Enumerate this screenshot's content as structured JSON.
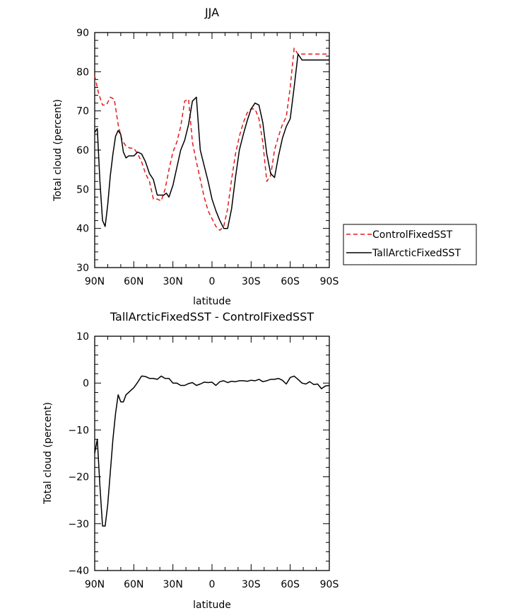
{
  "chart_data": [
    {
      "type": "line",
      "title": "JJA",
      "xlabel": "latitude",
      "ylabel": "Total cloud (percent)",
      "xlim": [
        90,
        -90
      ],
      "ylim": [
        30,
        90
      ],
      "x_tick_values": [
        90,
        60,
        30,
        0,
        -30,
        -60,
        -90
      ],
      "x_tick_labels": [
        "90N",
        "60N",
        "30N",
        "0",
        "30S",
        "60S",
        "90S"
      ],
      "y_tick_values": [
        30,
        40,
        50,
        60,
        70,
        80,
        90
      ],
      "y_tick_labels": [
        "30",
        "40",
        "50",
        "60",
        "70",
        "80",
        "90"
      ],
      "legend_position": "right",
      "series": [
        {
          "name": "ControlFixedSST",
          "color": "#e31a1c",
          "dash": "dashed",
          "x": [
            90,
            87,
            84,
            81,
            78,
            75,
            72,
            69,
            66,
            63,
            60,
            57,
            54,
            51,
            48,
            45,
            42,
            39,
            36,
            33,
            30,
            27,
            24,
            21,
            18,
            15,
            12,
            9,
            6,
            3,
            0,
            -3,
            -6,
            -9,
            -12,
            -15,
            -18,
            -21,
            -24,
            -27,
            -30,
            -33,
            -36,
            -39,
            -42,
            -45,
            -48,
            -51,
            -54,
            -57,
            -60,
            -63,
            -66,
            -69,
            -72,
            -75,
            -78,
            -81,
            -84,
            -87,
            -90
          ],
          "y": [
            79,
            74.5,
            71.5,
            71.5,
            73.5,
            73,
            66.5,
            62.5,
            61,
            60.5,
            60.5,
            59,
            57,
            54,
            52,
            47.5,
            47.5,
            47,
            50,
            55,
            59.5,
            62,
            66,
            72.5,
            73,
            62,
            57,
            52.5,
            48,
            44.5,
            42.5,
            40.5,
            39.5,
            40.5,
            45,
            52.5,
            59,
            63.5,
            67,
            69.5,
            70.5,
            70.5,
            68,
            62,
            52,
            53.5,
            60,
            63.5,
            66.5,
            68.5,
            76,
            86,
            84.5,
            84.5,
            84.5,
            84.5,
            84.5,
            84.5,
            84.5,
            84.5,
            84.5
          ]
        },
        {
          "name": "TallArcticFixedSST",
          "color": "#000000",
          "dash": "solid",
          "x": [
            90,
            88,
            86,
            84,
            82,
            80,
            78,
            76,
            74,
            72,
            70,
            68,
            66,
            64,
            62,
            60,
            57,
            54,
            51,
            48,
            45,
            42,
            39,
            37,
            35,
            33,
            30,
            27,
            24,
            21,
            18,
            15,
            12,
            9,
            6,
            3,
            0,
            -3,
            -6,
            -9,
            -12,
            -15,
            -18,
            -21,
            -24,
            -27,
            -30,
            -33,
            -36,
            -39,
            -42,
            -45,
            -48,
            -51,
            -54,
            -57,
            -60,
            -63,
            -66,
            -69,
            -72,
            -75,
            -78,
            -81,
            -84,
            -87,
            -90
          ],
          "y": [
            64.5,
            65.5,
            52,
            42,
            40.5,
            46,
            53.5,
            59,
            63.5,
            65,
            64,
            59.5,
            58,
            58.5,
            58.5,
            58.5,
            59.5,
            59,
            57,
            54,
            52.5,
            48.5,
            48.5,
            48.5,
            49,
            48,
            51,
            55.5,
            60,
            62.5,
            66.5,
            72.5,
            73.5,
            60,
            56,
            52,
            47.5,
            44.5,
            42,
            40,
            40,
            45,
            53,
            60,
            64,
            67.5,
            70.5,
            72,
            71.5,
            67,
            59,
            54,
            53,
            58.5,
            63,
            66,
            68,
            76,
            84.5,
            83,
            83,
            83,
            83,
            83,
            83,
            83,
            83
          ]
        }
      ]
    },
    {
      "type": "line",
      "title": "TallArcticFixedSST - ControlFixedSST",
      "xlabel": "latitude",
      "ylabel": "Total cloud (percent)",
      "xlim": [
        90,
        -90
      ],
      "ylim": [
        -40,
        10
      ],
      "x_tick_values": [
        90,
        60,
        30,
        0,
        -30,
        -60,
        -90
      ],
      "x_tick_labels": [
        "90N",
        "60N",
        "30N",
        "0",
        "30S",
        "60S",
        "90S"
      ],
      "y_tick_values": [
        -40,
        -30,
        -20,
        -10,
        0,
        10
      ],
      "y_tick_labels": [
        "−40",
        "−30",
        "−20",
        "−10",
        "0",
        "10"
      ],
      "series": [
        {
          "color": "#000000",
          "dash": "solid",
          "x": [
            90,
            88,
            86,
            84,
            82,
            80,
            78,
            76,
            74,
            72,
            70,
            68,
            66,
            64,
            62,
            60,
            57,
            54,
            51,
            48,
            45,
            42,
            39,
            36,
            33,
            30,
            27,
            24,
            21,
            18,
            15,
            12,
            9,
            6,
            3,
            0,
            -3,
            -6,
            -9,
            -12,
            -15,
            -18,
            -21,
            -24,
            -27,
            -30,
            -33,
            -36,
            -39,
            -42,
            -45,
            -48,
            -51,
            -54,
            -57,
            -60,
            -63,
            -66,
            -69,
            -72,
            -75,
            -78,
            -81,
            -84,
            -87,
            -90
          ],
          "y": [
            -15,
            -12,
            -22,
            -30.5,
            -30.5,
            -26,
            -19,
            -12,
            -6.5,
            -2.5,
            -4,
            -4,
            -2.5,
            -2,
            -1.5,
            -1,
            0.2,
            1.5,
            1.4,
            1,
            1,
            0.8,
            1.5,
            1,
            1,
            0,
            0,
            -0.5,
            -0.5,
            -0.1,
            0.1,
            -0.5,
            -0.2,
            0.2,
            0.1,
            0.2,
            -0.5,
            0.3,
            0.5,
            0.1,
            0.4,
            0.3,
            0.5,
            0.5,
            0.4,
            0.6,
            0.5,
            0.8,
            0.3,
            0.5,
            0.8,
            0.8,
            1,
            0.6,
            -0.2,
            1.2,
            1.5,
            0.8,
            0,
            -0.2,
            0.3,
            -0.3,
            -0.2,
            -1.2,
            -0.6,
            -0.5
          ]
        }
      ]
    }
  ]
}
